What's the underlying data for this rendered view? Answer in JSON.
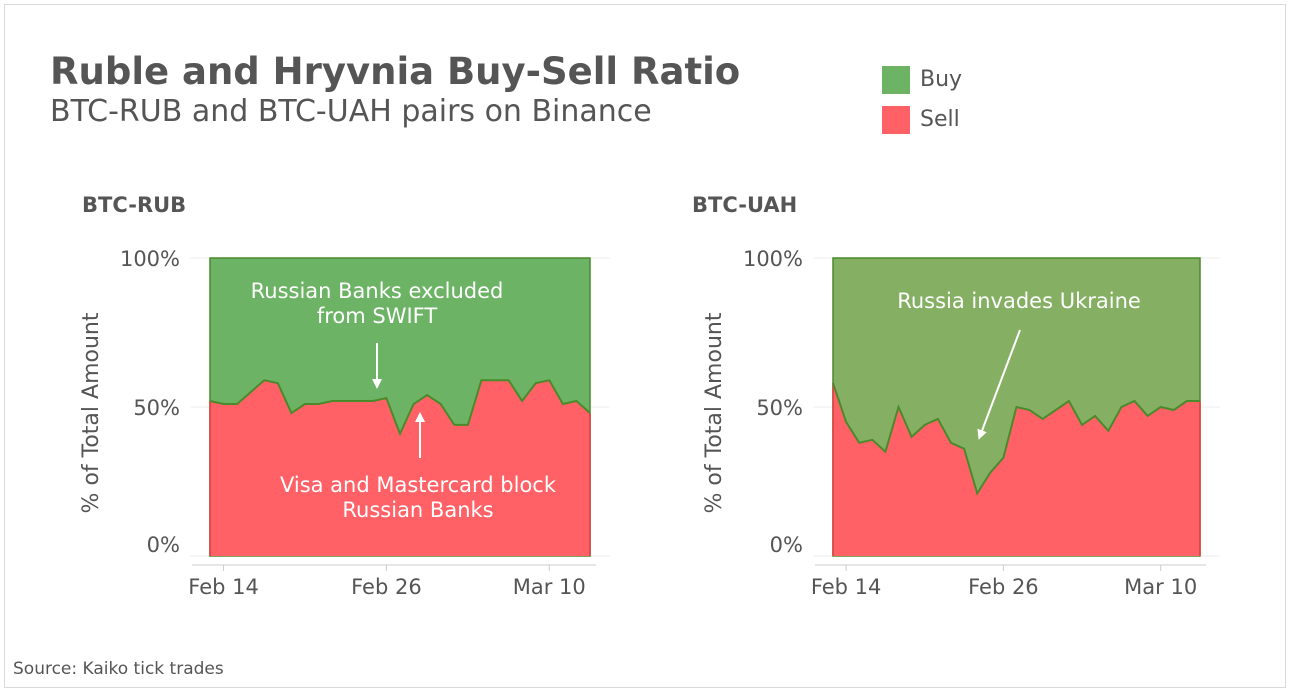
{
  "title": "Ruble and Hryvnia Buy-Sell Ratio",
  "subtitle": "BTC-RUB and BTC-UAH pairs on Binance",
  "source": "Source: Kaiko tick trades",
  "legend": [
    {
      "label": "Buy",
      "color": "#6db365"
    },
    {
      "label": "Sell",
      "color": "#ff6166"
    }
  ],
  "colors": {
    "buy": "#6db365",
    "buy_uah": "#85b064",
    "sell": "#ff6166",
    "line": "#4a8a2a",
    "sell_edge": "#d93d3d"
  },
  "chart_data": [
    {
      "type": "area",
      "title": "BTC-RUB",
      "ylabel": "% of Total Amount",
      "ylim": [
        0,
        100
      ],
      "yticks": [
        "0%",
        "50%",
        "100%"
      ],
      "xticks": [
        "Feb 14",
        "Feb 26",
        "Mar 10"
      ],
      "xtick_days": [
        13,
        25,
        37
      ],
      "x_days": [
        12,
        13,
        14,
        15,
        16,
        17,
        18,
        19,
        20,
        21,
        22,
        23,
        24,
        25,
        26,
        27,
        28,
        29,
        30,
        31,
        32,
        33,
        34,
        35,
        36,
        37,
        38,
        39,
        40
      ],
      "sell": [
        52,
        51,
        51,
        55,
        59,
        58,
        48,
        51,
        51,
        52,
        52,
        52,
        52,
        53,
        41,
        51,
        54,
        51,
        44,
        44,
        59,
        59,
        59,
        52,
        58,
        59,
        51,
        52,
        48
      ],
      "annotations": [
        {
          "text": [
            "Russian Banks excluded",
            "from SWIFT"
          ],
          "day": 25
        },
        {
          "text": [
            "Visa and Mastercard block",
            "Russian Banks"
          ],
          "day": 28
        }
      ]
    },
    {
      "type": "area",
      "title": "BTC-UAH",
      "ylabel": "% of Total Amount",
      "ylim": [
        0,
        100
      ],
      "yticks": [
        "0%",
        "50%",
        "100%"
      ],
      "xticks": [
        "Feb 14",
        "Feb 26",
        "Mar 10"
      ],
      "xtick_days": [
        13,
        25,
        37
      ],
      "x_days": [
        12,
        13,
        14,
        15,
        16,
        17,
        18,
        19,
        20,
        21,
        22,
        23,
        24,
        25,
        26,
        27,
        28,
        29,
        30,
        31,
        32,
        33,
        34,
        35,
        36,
        37,
        38,
        39,
        40
      ],
      "sell": [
        58,
        45,
        38,
        39,
        35,
        50,
        40,
        44,
        46,
        38,
        36,
        21,
        28,
        33,
        50,
        49,
        46,
        49,
        52,
        44,
        47,
        42,
        50,
        52,
        47,
        50,
        49,
        52,
        52
      ],
      "annotations": [
        {
          "text": [
            "Russia invades Ukraine"
          ],
          "day": 24
        }
      ]
    }
  ]
}
